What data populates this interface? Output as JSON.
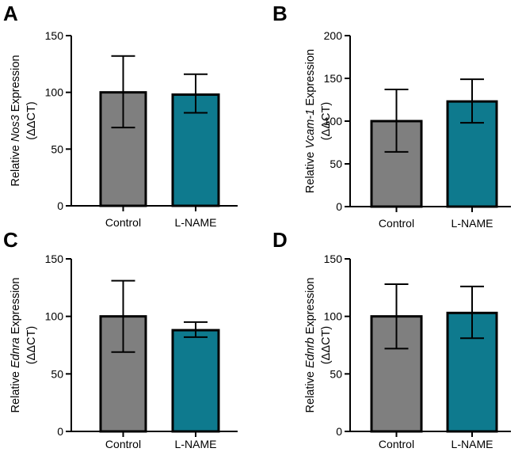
{
  "colors": {
    "control": "#7f7f7f",
    "lname": "#0e7a8e",
    "axis": "#000000"
  },
  "chart_data": [
    {
      "panel": "A",
      "type": "bar",
      "categories": [
        "Control",
        "L-NAME"
      ],
      "values": [
        100,
        98
      ],
      "error_low": [
        69,
        82
      ],
      "error_high": [
        132,
        116
      ],
      "ylim": [
        0,
        150
      ],
      "yticks": [
        "0",
        "50",
        "100",
        "150"
      ],
      "ylabel_pre": "Relative ",
      "ylabel_gene": "Nos3",
      "ylabel_post": " Expression",
      "ylabel_line2": "(ΔΔCT)"
    },
    {
      "panel": "B",
      "type": "bar",
      "categories": [
        "Control",
        "L-NAME"
      ],
      "values": [
        100,
        123
      ],
      "error_low": [
        64,
        98
      ],
      "error_high": [
        137,
        149
      ],
      "ylim": [
        0,
        200
      ],
      "yticks": [
        "0",
        "50",
        "100",
        "150",
        "200"
      ],
      "ylabel_pre": "Relative ",
      "ylabel_gene": "Vcam-1",
      "ylabel_post": " Expression",
      "ylabel_line2": "(ΔΔCT)"
    },
    {
      "panel": "C",
      "type": "bar",
      "categories": [
        "Control",
        "L-NAME"
      ],
      "values": [
        100,
        88
      ],
      "error_low": [
        69,
        82
      ],
      "error_high": [
        131,
        95
      ],
      "ylim": [
        0,
        150
      ],
      "yticks": [
        "0",
        "50",
        "100",
        "150"
      ],
      "ylabel_pre": "Relative ",
      "ylabel_gene": "Ednra",
      "ylabel_post": " Expression",
      "ylabel_line2": "(ΔΔCT)"
    },
    {
      "panel": "D",
      "type": "bar",
      "categories": [
        "Control",
        "L-NAME"
      ],
      "values": [
        100,
        103
      ],
      "error_low": [
        72,
        81
      ],
      "error_high": [
        128,
        126
      ],
      "ylim": [
        0,
        150
      ],
      "yticks": [
        "0",
        "50",
        "100",
        "150"
      ],
      "ylabel_pre": "Relative ",
      "ylabel_gene": "Ednrb",
      "ylabel_post": " Expression",
      "ylabel_line2": "(ΔΔCT)"
    }
  ]
}
